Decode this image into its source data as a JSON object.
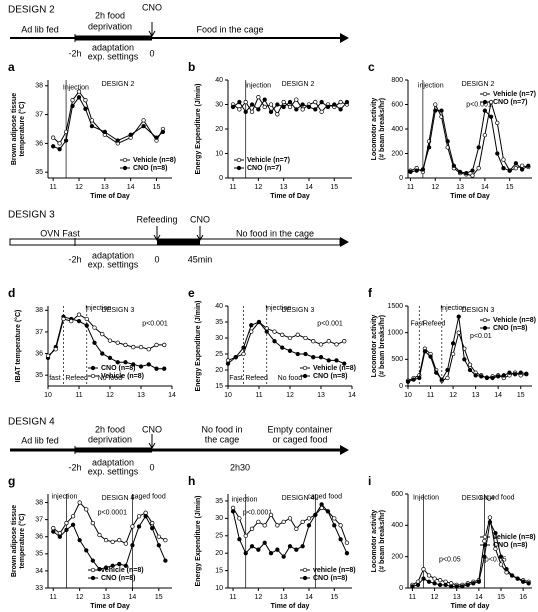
{
  "timelines": [
    {
      "title": "DESIGN 2",
      "labels": [
        "Ad lib fed",
        "2h food",
        "deprivation",
        "CNO",
        "Food in the cage",
        "-2h",
        "0",
        "adaptation",
        "exp. settings"
      ]
    },
    {
      "title": "DESIGN 3",
      "labels": [
        "OVN Fast",
        "Refeeding",
        "CNO",
        "No food in the cage",
        "-2h",
        "0",
        "45min",
        "adaptation",
        "exp. settings"
      ]
    },
    {
      "title": "DESIGN 4",
      "labels": [
        "Ad lib fed",
        "2h food",
        "deprivation",
        "CNO",
        "No food in",
        "the cage",
        "Empty container",
        "or caged food",
        "-2h",
        "0",
        "2h30",
        "adaptation",
        "exp. settings"
      ]
    }
  ],
  "chart_data": [
    {
      "type": "line",
      "panel": "a",
      "title": "DESIGN 2",
      "xlabel": "Time of Day",
      "ylabel": [
        "Brown adipose tissue",
        "temperature (°C)"
      ],
      "x": [
        11,
        11.25,
        11.5,
        11.75,
        12,
        12.25,
        12.5,
        13,
        13.5,
        14,
        14.5,
        15,
        15.25
      ],
      "xlim": [
        10.8,
        15.6
      ],
      "xticks": [
        11,
        12,
        13,
        14,
        15
      ],
      "ylim": [
        34.8,
        38.2
      ],
      "yticks": [
        35,
        36,
        37,
        38
      ],
      "series": [
        {
          "name": "Vehicle (n=8)",
          "color": "#000000",
          "fill": "#ffffff",
          "values": [
            36.2,
            36.0,
            36.4,
            37.5,
            37.8,
            37.5,
            36.8,
            36.3,
            36.0,
            36.2,
            36.8,
            36.1,
            36.5
          ]
        },
        {
          "name": "CNO (n=8)",
          "color": "#000000",
          "fill": "#000000",
          "values": [
            35.9,
            35.8,
            36.1,
            37.3,
            37.6,
            37.2,
            36.6,
            36.4,
            36.1,
            36.3,
            36.6,
            36.2,
            36.4
          ]
        }
      ],
      "vlines": [
        11.5
      ],
      "annotations": [
        "Injection"
      ],
      "legend": "lower right"
    },
    {
      "type": "line",
      "panel": "b",
      "title": "DESIGN 2",
      "xlabel": "Time of Day",
      "ylabel": [
        "Energy Expenditure (J/min)"
      ],
      "x": [
        11,
        11.25,
        11.5,
        11.75,
        12,
        12.25,
        12.5,
        12.75,
        13,
        13.25,
        13.5,
        13.75,
        14,
        14.25,
        14.5,
        14.75,
        15,
        15.25,
        15.5
      ],
      "xlim": [
        10.8,
        15.7
      ],
      "xticks": [
        11,
        12,
        13,
        14,
        15
      ],
      "ylim": [
        0,
        40
      ],
      "yticks": [
        0,
        10,
        20,
        30,
        40
      ],
      "series": [
        {
          "name": "Vehicle (n=7)",
          "color": "#000000",
          "fill": "#ffffff",
          "values": [
            30,
            28,
            31,
            27,
            33,
            29,
            30,
            26,
            31,
            29,
            32,
            28,
            30,
            31,
            27,
            30,
            29,
            31,
            30
          ]
        },
        {
          "name": "CNO (n=7)",
          "color": "#000000",
          "fill": "#000000",
          "values": [
            29,
            31,
            27,
            30,
            28,
            32,
            27,
            30,
            29,
            31,
            28,
            30,
            29,
            28,
            31,
            29,
            30,
            28,
            31
          ]
        }
      ],
      "vlines": [
        11.5
      ],
      "annotations": [
        "injection"
      ],
      "legend": "lower left"
    },
    {
      "type": "line",
      "panel": "c",
      "title": "DESIGN 2",
      "xlabel": "Time of Day",
      "ylabel": [
        "Locomotor activity",
        "(# beam breaks/hr)"
      ],
      "x": [
        11,
        11.25,
        11.5,
        11.75,
        12,
        12.25,
        12.5,
        12.75,
        13,
        13.25,
        13.5,
        13.75,
        14,
        14.25,
        14.5,
        14.75,
        15,
        15.25,
        15.5,
        15.75
      ],
      "xlim": [
        10.9,
        15.9
      ],
      "xticks": [
        11,
        12,
        13,
        14,
        15
      ],
      "ylim": [
        0,
        800
      ],
      "yticks": [
        0,
        200,
        400,
        600,
        800
      ],
      "series": [
        {
          "name": "Vehicle (n=7)",
          "color": "#000000",
          "fill": "#ffffff",
          "values": [
            60,
            80,
            50,
            300,
            600,
            500,
            250,
            80,
            40,
            30,
            20,
            80,
            350,
            620,
            450,
            150,
            60,
            80,
            100,
            90
          ]
        },
        {
          "name": "CNO (n=7)",
          "color": "#000000",
          "fill": "#000000",
          "values": [
            50,
            60,
            70,
            250,
            550,
            550,
            300,
            100,
            50,
            40,
            60,
            250,
            550,
            500,
            200,
            80,
            60,
            120,
            70,
            100
          ]
        }
      ],
      "vlines": [
        11.5
      ],
      "annotations": [
        "injection",
        "p<0.001"
      ],
      "legend": "upper right"
    },
    {
      "type": "line",
      "panel": "d",
      "title": "DESIGN 3",
      "ylabel": [
        "IBAT temperature (°C)"
      ],
      "x": [
        10,
        10.25,
        10.5,
        10.75,
        11,
        11.25,
        11.5,
        11.75,
        12,
        12.25,
        12.5,
        12.75,
        13,
        13.25,
        13.5,
        13.75
      ],
      "xlim": [
        10,
        14
      ],
      "xticks": [
        10,
        11,
        12,
        13,
        14
      ],
      "ylim": [
        34.5,
        38.2
      ],
      "yticks": [
        35,
        36,
        37,
        38
      ],
      "series": [
        {
          "name": "CNO (n=8)",
          "color": "#000000",
          "fill": "#000000",
          "values": [
            35.8,
            36.3,
            37.7,
            37.6,
            37.5,
            37.3,
            36.5,
            36.0,
            35.8,
            35.6,
            35.6,
            35.5,
            35.4,
            35.5,
            35.3,
            35.3
          ]
        },
        {
          "name": "Vehicle (n=8)",
          "color": "#000000",
          "fill": "#ffffff",
          "values": [
            35.9,
            36.2,
            37.6,
            37.5,
            37.8,
            37.6,
            37.2,
            36.9,
            36.6,
            36.5,
            36.4,
            36.3,
            36.3,
            36.2,
            36.4,
            36.4
          ]
        }
      ],
      "vlines": [
        10.5,
        11.25
      ],
      "annotations": [
        "Injection",
        "p<0.001",
        "fast",
        "Refeed",
        "No food"
      ],
      "legend": "lower center"
    },
    {
      "type": "line",
      "panel": "e",
      "title": "DESIGN 3",
      "ylabel": [
        "Energy Expenditure (J/min)"
      ],
      "x": [
        10,
        10.25,
        10.5,
        10.75,
        11,
        11.25,
        11.5,
        11.75,
        12,
        12.25,
        12.5,
        12.75,
        13,
        13.25,
        13.5,
        13.75
      ],
      "xlim": [
        10,
        14
      ],
      "xticks": [
        10,
        11,
        12,
        13,
        14
      ],
      "ylim": [
        15,
        40
      ],
      "yticks": [
        15,
        20,
        25,
        30,
        35,
        40
      ],
      "series": [
        {
          "name": "Vehicle (n=8)",
          "color": "#000000",
          "fill": "#ffffff",
          "values": [
            23,
            24,
            25,
            32,
            35,
            33,
            32,
            31,
            30,
            31,
            30,
            29,
            28,
            29,
            28,
            29
          ]
        },
        {
          "name": "CNO (n=8)",
          "color": "#000000",
          "fill": "#000000",
          "values": [
            22,
            24,
            27,
            34,
            35,
            32,
            29,
            27,
            26,
            25,
            25,
            24,
            24,
            23,
            23,
            22
          ]
        }
      ],
      "vlines": [
        10.5,
        11.25
      ],
      "annotations": [
        "Injection",
        "p<0.001",
        "Fast",
        "Refeed",
        "No food"
      ],
      "legend": "lower right"
    },
    {
      "type": "line",
      "panel": "f",
      "title": "DESIGN 3",
      "ylabel": [
        "Locomotor activity",
        "(# beam breaks/hr)"
      ],
      "x": [
        10,
        10.25,
        10.5,
        10.75,
        11,
        11.25,
        11.5,
        11.75,
        12,
        12.25,
        12.5,
        12.75,
        13,
        13.25,
        13.5,
        13.75,
        14,
        14.25,
        14.5,
        14.75,
        15,
        15.25
      ],
      "xlim": [
        10,
        15.5
      ],
      "xticks": [
        10,
        11,
        12,
        13,
        14,
        15
      ],
      "ylim": [
        0,
        1500
      ],
      "yticks": [
        0,
        500,
        1000,
        1500
      ],
      "series": [
        {
          "name": "Vehicle (n=8)",
          "color": "#000000",
          "fill": "#ffffff",
          "values": [
            100,
            150,
            200,
            700,
            600,
            300,
            100,
            150,
            600,
            1000,
            700,
            400,
            250,
            200,
            150,
            180,
            200,
            150,
            200,
            250,
            200,
            220
          ]
        },
        {
          "name": "CNO (n=8)",
          "color": "#000000",
          "fill": "#000000",
          "values": [
            80,
            120,
            150,
            650,
            550,
            250,
            120,
            300,
            800,
            1300,
            500,
            300,
            200,
            180,
            160,
            150,
            180,
            200,
            250,
            220,
            250,
            230
          ]
        }
      ],
      "vlines": [
        10.5,
        11.5
      ],
      "annotations": [
        "Fast",
        "Refeed",
        "Injection",
        "p<0.01"
      ],
      "legend": "upper right"
    },
    {
      "type": "line",
      "panel": "g",
      "title": "DESIGN 4",
      "xlabel": "Time of Day",
      "ylabel": [
        "Brown adipose tissue",
        "temperature (°C)"
      ],
      "x": [
        11,
        11.25,
        11.5,
        11.75,
        12,
        12.25,
        12.5,
        12.75,
        13,
        13.25,
        13.5,
        13.75,
        14,
        14.25,
        14.5,
        14.75,
        15,
        15.25
      ],
      "xlim": [
        10.8,
        15.5
      ],
      "xticks": [
        11,
        12,
        13,
        14,
        15
      ],
      "ylim": [
        33,
        38.5
      ],
      "yticks": [
        33,
        34,
        35,
        36,
        37,
        38
      ],
      "series": [
        {
          "name": "vehicle (n=8)",
          "color": "#000000",
          "fill": "#ffffff",
          "values": [
            36.5,
            36.2,
            36.8,
            37.2,
            38.0,
            37.6,
            36.8,
            36.1,
            35.8,
            35.7,
            35.8,
            35.6,
            36.6,
            37.2,
            37.4,
            36.8,
            36.0,
            35.8
          ]
        },
        {
          "name": "CNO (n=8)",
          "color": "#000000",
          "fill": "#000000",
          "values": [
            36.3,
            36.0,
            36.4,
            36.7,
            35.8,
            35.2,
            34.6,
            34.1,
            34.2,
            34.3,
            34.4,
            34.3,
            35.5,
            36.6,
            37.2,
            36.5,
            35.5,
            34.6
          ]
        }
      ],
      "vlines": [
        11.5,
        14
      ],
      "annotations": [
        "injection",
        "p<0.0001",
        "caged food"
      ],
      "legend": "lower center"
    },
    {
      "type": "line",
      "panel": "h",
      "title": "DESIGN 4",
      "xlabel": "Time of day",
      "ylabel": [
        "Energy Expenditure (J/min)"
      ],
      "x": [
        11,
        11.25,
        11.5,
        11.75,
        12,
        12.25,
        12.5,
        12.75,
        13,
        13.25,
        13.5,
        13.75,
        14,
        14.25,
        14.5,
        14.75,
        15,
        15.25,
        15.5
      ],
      "xlim": [
        10.8,
        15.7
      ],
      "xticks": [
        11,
        12,
        13,
        14,
        15
      ],
      "ylim": [
        10,
        37
      ],
      "yticks": [
        10,
        15,
        20,
        25,
        30,
        35
      ],
      "series": [
        {
          "name": "vehicle (n=8)",
          "color": "#000000",
          "fill": "#ffffff",
          "values": [
            33,
            30,
            25,
            27,
            29,
            28,
            31,
            28,
            29,
            30,
            27,
            29,
            30,
            31,
            33,
            32,
            30,
            28,
            23
          ]
        },
        {
          "name": "CNO (n=8)",
          "color": "#000000",
          "fill": "#000000",
          "values": [
            32,
            24,
            20,
            22,
            21,
            23,
            20,
            21,
            19,
            22,
            21,
            22,
            28,
            31,
            34,
            32,
            28,
            24,
            20
          ]
        }
      ],
      "vlines": [
        11.5,
        14.25
      ],
      "annotations": [
        "injection",
        "p<0.0001",
        "caged food"
      ],
      "legend": "lower right"
    },
    {
      "type": "line",
      "panel": "i",
      "title": "DESIGN 4",
      "xlabel": "Time of day",
      "ylabel": [
        "Locomotor activity",
        "(# beam breaks/hr)"
      ],
      "x": [
        11,
        11.25,
        11.5,
        11.75,
        12,
        12.25,
        12.5,
        12.75,
        13,
        13.25,
        13.5,
        13.75,
        14,
        14.25,
        14.5,
        14.75,
        15,
        15.25,
        15.5,
        15.75,
        16,
        16.25
      ],
      "xlim": [
        10.8,
        16.4
      ],
      "xticks": [
        11,
        12,
        13,
        14,
        15,
        16
      ],
      "ylim": [
        0,
        600
      ],
      "yticks": [
        0,
        200,
        400,
        600
      ],
      "series": [
        {
          "name": "vehicle (n=8)",
          "color": "#000000",
          "fill": "#ffffff",
          "values": [
            20,
            40,
            120,
            80,
            60,
            50,
            40,
            30,
            20,
            20,
            30,
            40,
            50,
            300,
            450,
            250,
            150,
            100,
            80,
            60,
            50,
            40
          ]
        },
        {
          "name": "CNO (n=8)",
          "color": "#000000",
          "fill": "#000000",
          "values": [
            10,
            20,
            60,
            40,
            30,
            20,
            20,
            10,
            10,
            10,
            20,
            30,
            40,
            200,
            420,
            350,
            200,
            120,
            80,
            60,
            40,
            30
          ]
        }
      ],
      "vlines": [
        11.5,
        14.25
      ],
      "annotations": [
        "Injection",
        "caged food",
        "p<0.05",
        "p<0.05"
      ],
      "legend": "center right"
    }
  ]
}
